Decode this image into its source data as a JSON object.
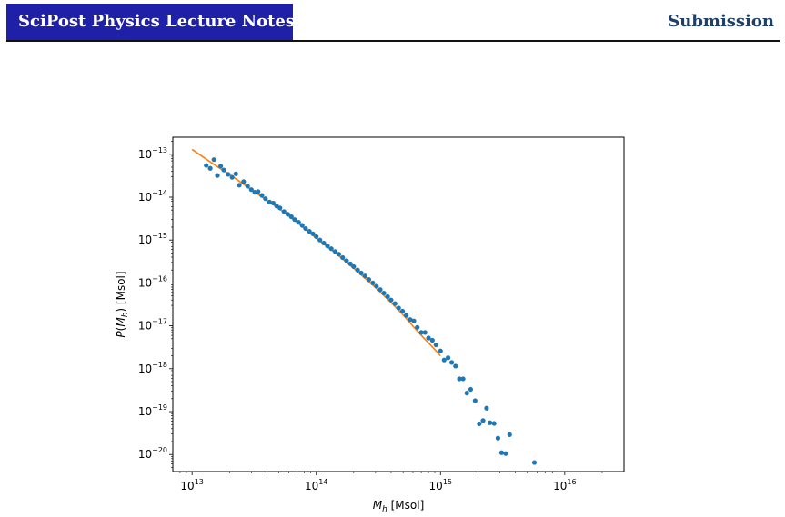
{
  "header": {
    "journal": "SciPost Physics Lecture Notes",
    "section": "Submission",
    "badge_color": "#1f20a8",
    "section_color": "#1f4068"
  },
  "chart_data": {
    "type": "scatter",
    "xlabel": "M_h [Msol]",
    "ylabel": "P(M_h) [Msol]",
    "x_scale": "log",
    "y_scale": "log",
    "xlim": [
      7000000000000.0,
      3e+16
    ],
    "ylim": [
      4e-21,
      2.5e-13
    ],
    "x_ticks": [
      {
        "value": 10000000000000.0,
        "base": "10",
        "exp": "13"
      },
      {
        "value": 100000000000000.0,
        "base": "10",
        "exp": "14"
      },
      {
        "value": 1000000000000000.0,
        "base": "10",
        "exp": "15"
      },
      {
        "value": 1e+16,
        "base": "10",
        "exp": "16"
      }
    ],
    "y_ticks": [
      {
        "value": 1e-13,
        "base": "10",
        "exp": "−13"
      },
      {
        "value": 1e-14,
        "base": "10",
        "exp": "−14"
      },
      {
        "value": 1e-15,
        "base": "10",
        "exp": "−15"
      },
      {
        "value": 1e-16,
        "base": "10",
        "exp": "−16"
      },
      {
        "value": 1e-17,
        "base": "10",
        "exp": "−17"
      },
      {
        "value": 1e-18,
        "base": "10",
        "exp": "−18"
      },
      {
        "value": 1e-19,
        "base": "10",
        "exp": "−19"
      },
      {
        "value": 1e-20,
        "base": "10",
        "exp": "−20"
      }
    ],
    "grid": false,
    "series": [
      {
        "mark": "scatter",
        "color": "#1f77b4",
        "points": [
          [
            13000000000000.0,
            5.5e-14
          ],
          [
            14000000000000.0,
            4.7e-14
          ],
          [
            15000000000000.0,
            7.5e-14
          ],
          [
            16000000000000.0,
            3.2e-14
          ],
          [
            17000000000000.0,
            5.3e-14
          ],
          [
            18000000000000.0,
            4.3e-14
          ],
          [
            19500000000000.0,
            3.4e-14
          ],
          [
            21000000000000.0,
            2.9e-14
          ],
          [
            22500000000000.0,
            3.5e-14
          ],
          [
            24000000000000.0,
            1.9e-14
          ],
          [
            26000000000000.0,
            2.3e-14
          ],
          [
            28000000000000.0,
            1.8e-14
          ],
          [
            30000000000000.0,
            1.5e-14
          ],
          [
            32000000000000.0,
            1.3e-14
          ],
          [
            34000000000000.0,
            1.35e-14
          ],
          [
            36500000000000.0,
            1.1e-14
          ],
          [
            39000000000000.0,
            9.2e-15
          ],
          [
            42000000000000.0,
            7.7e-15
          ],
          [
            45000000000000.0,
            7.3e-15
          ],
          [
            48000000000000.0,
            6.2e-15
          ],
          [
            51000000000000.0,
            5.6e-15
          ],
          [
            55000000000000.0,
            4.6e-15
          ],
          [
            59000000000000.0,
            4e-15
          ],
          [
            63000000000000.0,
            3.5e-15
          ],
          [
            67000000000000.0,
            3e-15
          ],
          [
            72000000000000.0,
            2.6e-15
          ],
          [
            77000000000000.0,
            2.2e-15
          ],
          [
            82000000000000.0,
            1.85e-15
          ],
          [
            88000000000000.0,
            1.6e-15
          ],
          [
            94000000000000.0,
            1.4e-15
          ],
          [
            100000000000000.0,
            1.2e-15
          ],
          [
            107000000000000.0,
            1e-15
          ],
          [
            115000000000000.0,
            8.5e-16
          ],
          [
            123000000000000.0,
            7.3e-16
          ],
          [
            132000000000000.0,
            6.3e-16
          ],
          [
            142000000000000.0,
            5.4e-16
          ],
          [
            152000000000000.0,
            4.7e-16
          ],
          [
            163000000000000.0,
            3.9e-16
          ],
          [
            175000000000000.0,
            3.3e-16
          ],
          [
            188000000000000.0,
            2.8e-16
          ],
          [
            200000000000000.0,
            2.4e-16
          ],
          [
            215000000000000.0,
            2e-16
          ],
          [
            230000000000000.0,
            1.7e-16
          ],
          [
            247000000000000.0,
            1.45e-16
          ],
          [
            265000000000000.0,
            1.2e-16
          ],
          [
            285000000000000.0,
            1e-16
          ],
          [
            305000000000000.0,
            8.4e-17
          ],
          [
            327000000000000.0,
            7e-17
          ],
          [
            350000000000000.0,
            5.8e-17
          ],
          [
            375000000000000.0,
            4.8e-17
          ],
          [
            400000000000000.0,
            4e-17
          ],
          [
            430000000000000.0,
            3.3e-17
          ],
          [
            460000000000000.0,
            2.6e-17
          ],
          [
            495000000000000.0,
            2.2e-17
          ],
          [
            530000000000000.0,
            1.75e-17
          ],
          [
            570000000000000.0,
            1.4e-17
          ],
          [
            610000000000000.0,
            1.3e-17
          ],
          [
            650000000000000.0,
            9.2e-18
          ],
          [
            700000000000000.0,
            7e-18
          ],
          [
            750000000000000.0,
            7e-18
          ],
          [
            800000000000000.0,
            5.2e-18
          ],
          [
            860000000000000.0,
            4.6e-18
          ],
          [
            920000000000000.0,
            3.6e-18
          ],
          [
            1000000000000000.0,
            2.6e-18
          ],
          [
            1070000000000000.0,
            1.6e-18
          ],
          [
            1150000000000000.0,
            1.8e-18
          ],
          [
            1230000000000000.0,
            1.4e-18
          ],
          [
            1320000000000000.0,
            1.15e-18
          ],
          [
            1420000000000000.0,
            5.8e-19
          ],
          [
            1520000000000000.0,
            5.8e-19
          ],
          [
            1630000000000000.0,
            2.7e-19
          ],
          [
            1750000000000000.0,
            3.3e-19
          ],
          [
            1900000000000000.0,
            1.8e-19
          ],
          [
            2050000000000000.0,
            5.2e-20
          ],
          [
            2200000000000000.0,
            6.2e-20
          ],
          [
            2350000000000000.0,
            1.2e-19
          ],
          [
            2500000000000000.0,
            5.5e-20
          ],
          [
            2700000000000000.0,
            5.3e-20
          ],
          [
            2900000000000000.0,
            2.4e-20
          ],
          [
            3100000000000000.0,
            1.1e-20
          ],
          [
            3350000000000000.0,
            1.05e-20
          ],
          [
            3600000000000000.0,
            2.9e-20
          ],
          [
            5700000000000000.0,
            6.5e-21
          ]
        ]
      },
      {
        "mark": "line",
        "color": "#ff7f0e",
        "points": [
          [
            10000000000000.0,
            1.3e-13
          ],
          [
            15000000000000.0,
            5.8e-14
          ],
          [
            20000000000000.0,
            3.4e-14
          ],
          [
            30000000000000.0,
            1.5e-14
          ],
          [
            50000000000000.0,
            5.4e-15
          ],
          [
            70000000000000.0,
            2.6e-15
          ],
          [
            100000000000000.0,
            1.1e-15
          ],
          [
            150000000000000.0,
            4.4e-16
          ],
          [
            200000000000000.0,
            2.2e-16
          ],
          [
            300000000000000.0,
            7.8e-17
          ],
          [
            400000000000000.0,
            3.5e-17
          ],
          [
            500000000000000.0,
            1.8e-17
          ],
          [
            600000000000000.0,
            9.8e-18
          ],
          [
            700000000000000.0,
            6e-18
          ],
          [
            800000000000000.0,
            4e-18
          ],
          [
            900000000000000.0,
            2.8e-18
          ],
          [
            1000000000000000.0,
            2e-18
          ]
        ]
      }
    ]
  }
}
